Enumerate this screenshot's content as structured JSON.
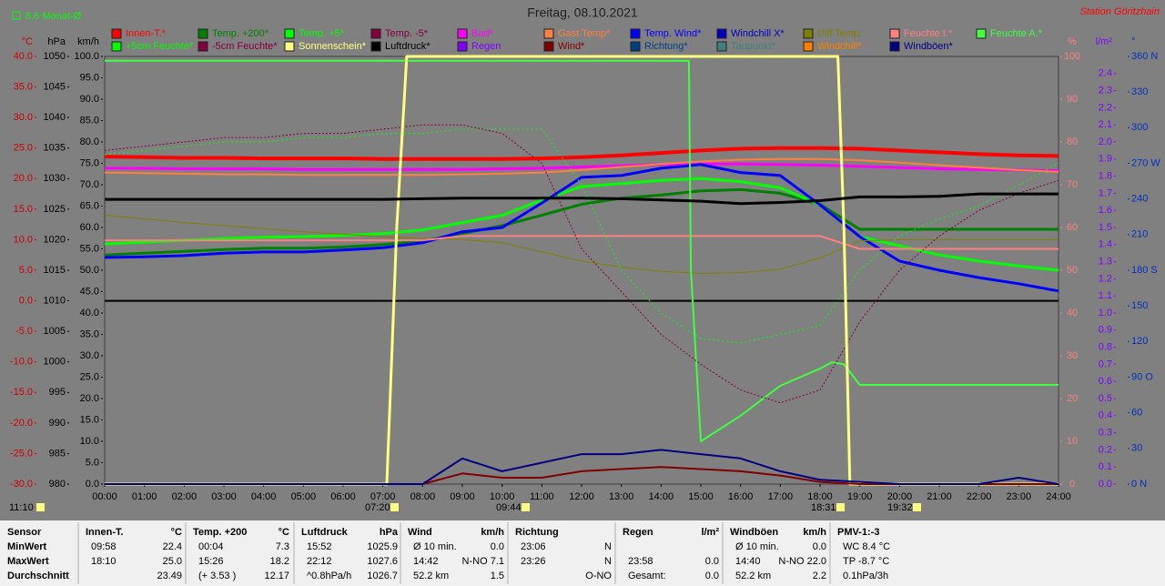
{
  "chart_data": {
    "type": "line",
    "title": "Freitag, 08.10.2021",
    "station": "Station Göritzhain",
    "month_avg": "8.6 Monat-Ø",
    "x": [
      0,
      1,
      2,
      3,
      4,
      5,
      6,
      7,
      8,
      9,
      10,
      11,
      12,
      13,
      14,
      15,
      16,
      17,
      18,
      19,
      20,
      21,
      22,
      23,
      24
    ],
    "xlim": [
      0,
      24
    ],
    "xticks": [
      {
        "value": 0,
        "label": "00:00"
      },
      {
        "value": 1,
        "label": "01:00"
      },
      {
        "value": 2,
        "label": "02:00"
      },
      {
        "value": 3,
        "label": "03:00"
      },
      {
        "value": 4,
        "label": "04:00"
      },
      {
        "value": 5,
        "label": "05:00"
      },
      {
        "value": 6,
        "label": "06:00"
      },
      {
        "value": 7,
        "label": "07:00"
      },
      {
        "value": 8,
        "label": "08:00"
      },
      {
        "value": 9,
        "label": "09:00"
      },
      {
        "value": 10,
        "label": "10:00"
      },
      {
        "value": 11,
        "label": "11:00"
      },
      {
        "value": 12,
        "label": "12:00"
      },
      {
        "value": 13,
        "label": "13:00"
      },
      {
        "value": 14,
        "label": "14:00"
      },
      {
        "value": 15,
        "label": "15:00"
      },
      {
        "value": 16,
        "label": "16:00"
      },
      {
        "value": 17,
        "label": "17:00"
      },
      {
        "value": 18,
        "label": "18:00"
      },
      {
        "value": 19,
        "label": "19:00"
      },
      {
        "value": 20,
        "label": "20:00"
      },
      {
        "value": 21,
        "label": "21:00"
      },
      {
        "value": 22,
        "label": "22:00"
      },
      {
        "value": 23,
        "label": "23:00"
      },
      {
        "value": 24,
        "label": "24:00"
      }
    ],
    "annotations": [
      "11:10",
      "07:20",
      "09:44",
      "18:31",
      "19:32"
    ],
    "axes": {
      "temp": {
        "label": "°C",
        "color": "#d00000",
        "lim": [
          -30,
          40
        ],
        "ticks": [
          {
            "value": -30,
            "label": "-30.0"
          },
          {
            "value": -25,
            "label": "-25.0"
          },
          {
            "value": -20,
            "label": "-20.0"
          },
          {
            "value": -15,
            "label": "-15.0"
          },
          {
            "value": -10,
            "label": "-10.0"
          },
          {
            "value": -5,
            "label": "-5.0"
          },
          {
            "value": 0,
            "label": "0.0"
          },
          {
            "value": 5,
            "label": "5.0"
          },
          {
            "value": 10,
            "label": "10.0"
          },
          {
            "value": 15,
            "label": "15.0"
          },
          {
            "value": 20,
            "label": "20.0"
          },
          {
            "value": 25,
            "label": "25.0"
          },
          {
            "value": 30,
            "label": "30.0"
          },
          {
            "value": 35,
            "label": "35.0"
          },
          {
            "value": 40,
            "label": "40.0"
          }
        ]
      },
      "hpa": {
        "label": "hPa",
        "color": "#000000",
        "lim": [
          980,
          1050
        ],
        "ticks": [
          980,
          985,
          990,
          995,
          1000,
          1005,
          1010,
          1015,
          1020,
          1025,
          1030,
          1035,
          1040,
          1045,
          1050
        ]
      },
      "kmh": {
        "label": "km/h",
        "color": "#000000",
        "lim": [
          0,
          100
        ],
        "ticks": [
          {
            "value": 0,
            "label": "0.0"
          },
          {
            "value": 5,
            "label": "5.0"
          },
          {
            "value": 10,
            "label": "10.0"
          },
          {
            "value": 15,
            "label": "15.0"
          },
          {
            "value": 20,
            "label": "20.0"
          },
          {
            "value": 25,
            "label": "25.0"
          },
          {
            "value": 30,
            "label": "30.0"
          },
          {
            "value": 35,
            "label": "35.0"
          },
          {
            "value": 40,
            "label": "40.0"
          },
          {
            "value": 45,
            "label": "45.0"
          },
          {
            "value": 50,
            "label": "50.0"
          },
          {
            "value": 55,
            "label": "55.0"
          },
          {
            "value": 60,
            "label": "60.0"
          },
          {
            "value": 65,
            "label": "65.0"
          },
          {
            "value": 70,
            "label": "70.0"
          },
          {
            "value": 75,
            "label": "75.0"
          },
          {
            "value": 80,
            "label": "80.0"
          },
          {
            "value": 85,
            "label": "85.0"
          },
          {
            "value": 90,
            "label": "90.0"
          },
          {
            "value": 95,
            "label": "95.0"
          },
          {
            "value": 100,
            "label": "100.0"
          }
        ]
      },
      "pct": {
        "label": "%",
        "color": "#ff8080",
        "lim": [
          0,
          100
        ],
        "ticks": [
          0,
          10,
          20,
          30,
          40,
          50,
          60,
          70,
          80,
          90,
          100
        ]
      },
      "rain": {
        "label": "l/m²",
        "color": "#8000ff",
        "lim": [
          0,
          2.5
        ],
        "ticks": [
          {
            "value": 0,
            "label": "0.0"
          },
          0.1,
          0.2,
          0.3,
          0.4,
          0.5,
          0.6,
          0.7,
          0.8,
          0.9,
          {
            "value": 1,
            "label": "1.0"
          },
          1.1,
          1.2,
          1.3,
          1.4,
          1.5,
          1.6,
          1.7,
          1.8,
          1.9,
          {
            "value": 2,
            "label": "2.0"
          },
          2.1,
          2.2,
          2.3,
          2.4
        ]
      },
      "deg": {
        "label": "°",
        "color": "#0030c0",
        "lim": [
          0,
          360
        ],
        "ticks": [
          {
            "value": 0,
            "label": "0 N"
          },
          30,
          60,
          {
            "value": 90,
            "label": "90 O"
          },
          120,
          150,
          {
            "value": 180,
            "label": "180 S"
          },
          210,
          240,
          {
            "value": 270,
            "label": "270 W"
          },
          300,
          330,
          {
            "value": 360,
            "label": "360 N"
          }
        ]
      }
    },
    "series": [
      {
        "name": "Innen-T.*",
        "color": "#ff0000",
        "axis": "temp",
        "width": 4,
        "values": [
          23.6,
          23.5,
          23.4,
          23.4,
          23.3,
          23.3,
          23.3,
          23.2,
          23.2,
          23.2,
          23.2,
          23.3,
          23.5,
          23.8,
          24.2,
          24.6,
          24.9,
          25.0,
          25.0,
          24.9,
          24.6,
          24.3,
          24.0,
          23.8,
          23.7
        ]
      },
      {
        "name": "Temp. +200*",
        "color": "#008000",
        "axis": "temp",
        "width": 3,
        "values": [
          7.5,
          7.8,
          8.1,
          8.4,
          8.6,
          8.6,
          8.8,
          9.2,
          9.8,
          11.0,
          12.3,
          14.0,
          15.8,
          16.8,
          17.3,
          18.0,
          18.2,
          17.6,
          15.8,
          11.7,
          11.7,
          11.7,
          11.7,
          11.7,
          11.7
        ]
      },
      {
        "name": "Temp. +5*",
        "color": "#00ff00",
        "axis": "temp",
        "width": 3,
        "values": [
          9.3,
          9.6,
          9.9,
          10.2,
          10.4,
          10.5,
          10.7,
          11.0,
          11.6,
          12.8,
          14.0,
          16.5,
          18.7,
          19.2,
          19.7,
          20.0,
          19.5,
          18.5,
          15.7,
          10.5,
          9.0,
          7.5,
          6.5,
          5.7,
          5.0
        ]
      },
      {
        "name": "Temp. -5*",
        "color": "#800040",
        "axis": "temp"
      },
      {
        "name": "Bad*",
        "color": "#ff00ff",
        "axis": "temp",
        "width": 3,
        "values": [
          21.7,
          21.7,
          21.6,
          21.6,
          21.6,
          21.5,
          21.5,
          21.5,
          21.5,
          21.5,
          21.6,
          21.7,
          21.9,
          22.1,
          22.3,
          22.4,
          22.4,
          22.3,
          22.2,
          22.0,
          21.8,
          21.6,
          21.5,
          21.4,
          21.3
        ]
      },
      {
        "name": "Gast Temp*",
        "color": "#ff8040",
        "axis": "temp",
        "width": 2,
        "values": [
          21.0,
          20.9,
          20.8,
          20.7,
          20.7,
          20.6,
          20.6,
          20.6,
          20.6,
          20.7,
          20.8,
          21.0,
          21.4,
          21.9,
          22.4,
          22.8,
          23.1,
          23.2,
          23.2,
          23.0,
          22.6,
          22.2,
          21.8,
          21.4,
          21.1
        ]
      },
      {
        "name": "Temp. Wind*",
        "color": "#0000ff",
        "axis": "temp",
        "width": 3,
        "values": [
          7.1,
          7.2,
          7.4,
          7.8,
          8.0,
          8.0,
          8.3,
          8.7,
          9.5,
          11.3,
          12.0,
          16.0,
          20.2,
          20.5,
          21.7,
          22.3,
          21.0,
          20.5,
          15.7,
          10.5,
          6.5,
          5.0,
          3.8,
          2.8,
          1.6
        ]
      },
      {
        "name": "Windchill X*",
        "color": "#0000c0",
        "axis": "temp"
      },
      {
        "name": "Diff Temp.",
        "color": "#808000",
        "axis": "temp",
        "width": 1,
        "values": [
          14.0,
          13.4,
          12.8,
          12.3,
          11.8,
          11.3,
          10.9,
          10.5,
          10.2,
          10.0,
          9.5,
          8.0,
          6.5,
          5.5,
          4.8,
          4.5,
          4.6,
          5.2,
          7.0,
          9.8,
          10.0,
          10.0,
          10.0,
          10.0,
          10.0
        ]
      },
      {
        "name": "Feuchte I.*",
        "color": "#ff8080",
        "axis": "pct",
        "width": 2,
        "values": [
          57,
          57,
          57,
          57,
          57,
          57,
          57,
          57,
          57,
          58,
          58,
          58,
          58,
          58,
          58,
          58,
          58,
          58,
          58,
          55,
          55,
          55,
          55,
          55,
          55
        ]
      },
      {
        "name": "Feuchte A.*",
        "color": "#40ff40",
        "axis": "pct",
        "width": 2,
        "x": [
          0,
          14.7,
          14.75,
          15,
          16,
          17,
          18,
          18.3,
          18.6,
          19,
          24
        ],
        "values": [
          99,
          99,
          50,
          10,
          16,
          23,
          27,
          28.5,
          28,
          23.2,
          23.2
        ]
      },
      {
        "name": "+5cm Feuchte*",
        "color": "#00ff00",
        "axis": "pct",
        "width": 1,
        "dash": "2 3",
        "values": [
          77,
          78,
          79,
          80,
          80,
          81,
          81,
          82,
          82,
          83,
          83,
          83,
          70,
          50,
          40,
          34,
          33,
          35,
          37,
          50,
          58,
          62,
          65,
          70,
          75
        ]
      },
      {
        "name": "-5cm Feuchte*",
        "color": "#800040",
        "axis": "pct",
        "width": 1,
        "dash": "2 2",
        "values": [
          78,
          79,
          80,
          81,
          81,
          82,
          82,
          83,
          84,
          84,
          82,
          75,
          55,
          45,
          35,
          28,
          22,
          19,
          22,
          38,
          50,
          58,
          64,
          68,
          71
        ]
      },
      {
        "name": "Sonnenschein*",
        "color": "#ffff80",
        "axis": "pct",
        "width": 3,
        "x": [
          0,
          7.1,
          7.35,
          7.6,
          18.45,
          18.6,
          18.75,
          24
        ],
        "values": [
          0,
          0,
          60,
          100,
          100,
          60,
          0,
          0
        ]
      },
      {
        "name": "Luftdruck*",
        "color": "#000000",
        "axis": "hpa",
        "width": 3,
        "values": [
          1026.6,
          1026.6,
          1026.6,
          1026.6,
          1026.6,
          1026.6,
          1026.6,
          1026.6,
          1026.7,
          1026.8,
          1026.8,
          1026.8,
          1026.8,
          1026.7,
          1026.5,
          1026.3,
          1025.9,
          1026.1,
          1026.4,
          1027.0,
          1027.0,
          1027.1,
          1027.5,
          1027.5,
          1027.5
        ]
      },
      {
        "name": "Regen",
        "color": "#8000ff",
        "axis": "rain"
      },
      {
        "name": "Wind*",
        "color": "#800000",
        "axis": "kmh",
        "width": 2,
        "values": [
          0,
          0,
          0,
          0,
          0,
          0,
          0,
          0,
          0,
          2.5,
          1.5,
          1.5,
          3,
          3.5,
          4,
          3.5,
          3,
          2,
          0.5,
          0,
          0,
          0,
          0,
          0,
          0
        ]
      },
      {
        "name": "Richtung*",
        "color": "#004080",
        "axis": "deg"
      },
      {
        "name": "Taupunkt*",
        "color": "#408080",
        "axis": "temp"
      },
      {
        "name": "Windchill*",
        "color": "#ff8000",
        "axis": "temp"
      },
      {
        "name": "Windböen*",
        "color": "#000080",
        "axis": "kmh",
        "width": 2,
        "values": [
          0,
          0,
          0,
          0,
          0,
          0,
          0,
          0,
          0,
          6,
          3,
          5,
          7,
          7,
          8,
          7,
          6,
          3,
          1,
          0.5,
          0,
          0,
          0,
          1.5,
          0
        ]
      }
    ]
  },
  "table": {
    "row_labels": [
      "Sensor",
      "MinWert",
      "MaxWert",
      "Durchschnitt"
    ],
    "sections": [
      {
        "title": "Innen-T.",
        "unit": "°C",
        "rows": [
          {
            "left": "09:58",
            "right": "22.4"
          },
          {
            "left": "18:10",
            "right": "25.0"
          },
          {
            "right": "23.49"
          }
        ]
      },
      {
        "title": "Temp. +200",
        "unit": "°C",
        "rows": [
          {
            "left": "00:04",
            "right": "7.3"
          },
          {
            "left": "15:26",
            "right": "18.2"
          },
          {
            "left": "(+ 3.53 )",
            "right": "12.17"
          }
        ]
      },
      {
        "title": "Luftdruck",
        "unit": "hPa",
        "rows": [
          {
            "left": "15:52",
            "right": "1025.9"
          },
          {
            "left": "22:12",
            "right": "1027.6"
          },
          {
            "left": "^0.8hPa/h",
            "right": "1026.7"
          }
        ]
      },
      {
        "title": "Wind",
        "unit": "km/h",
        "rows": [
          {
            "left": "Ø 10 min.",
            "right": "0.0"
          },
          {
            "left": "14:42",
            "right": "N-NO 7.1"
          },
          {
            "left": "52.2 km",
            "right": "1.5"
          }
        ]
      },
      {
        "title": "Richtung",
        "rows": [
          {
            "left": "23:06",
            "right": "N"
          },
          {
            "left": "23:26",
            "right": "N"
          },
          {
            "right": "O-NO"
          }
        ]
      },
      {
        "title": "Regen",
        "unit": "l/m²",
        "rows": [
          {},
          {
            "left": "23:58",
            "right": "0.0"
          },
          {
            "left": "Gesamt:",
            "right": "0.0"
          }
        ]
      },
      {
        "title": "Windböen",
        "unit": "km/h",
        "rows": [
          {
            "left": "Ø 10 min.",
            "right": "0.0"
          },
          {
            "left": "14:40",
            "right": "N-NO 22.0"
          },
          {
            "left": "52.2 km",
            "right": "2.2"
          }
        ]
      },
      {
        "title": "PMV-1:-3",
        "rows": [
          {
            "left": "WC 8.4 °C"
          },
          {
            "left": "TP -8.7 °C"
          },
          {
            "left": "0.1hPa/3h"
          }
        ]
      }
    ]
  }
}
